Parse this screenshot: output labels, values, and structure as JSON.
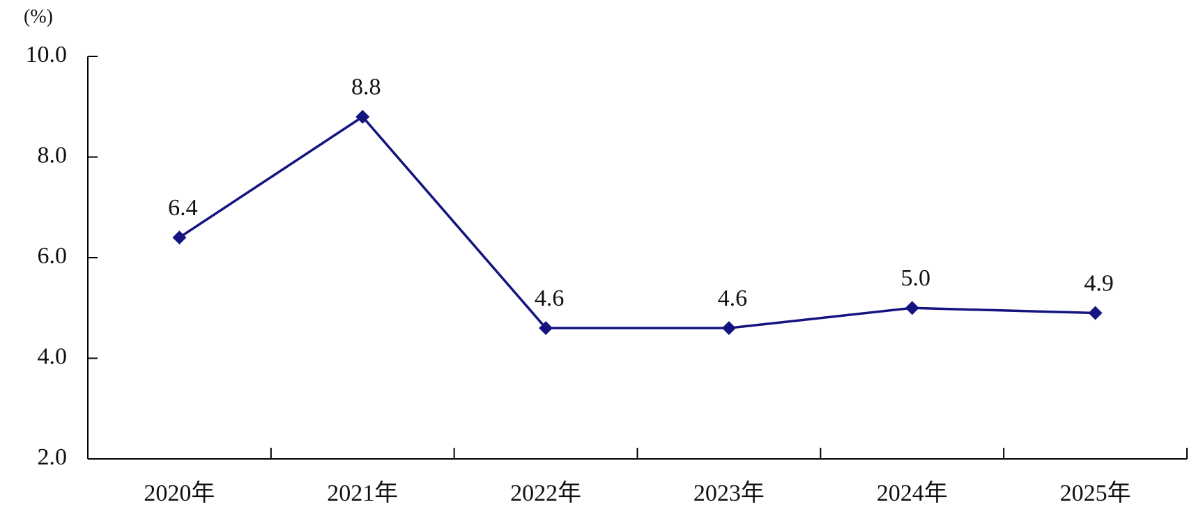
{
  "chart_data": {
    "type": "line",
    "y_label": "(%)",
    "categories": [
      "2020年",
      "2021年",
      "2022年",
      "2023年",
      "2024年",
      "2025年"
    ],
    "series": [
      {
        "color": "#141480",
        "values": [
          6.4,
          8.8,
          4.6,
          4.6,
          5.0,
          4.9
        ],
        "value_labels": [
          "6.4",
          "8.8",
          "4.6",
          "4.6",
          "5.0",
          "4.9"
        ]
      }
    ],
    "ylim": [
      2,
      10
    ],
    "yticks": [
      {
        "value": 2,
        "label": "2.0"
      },
      {
        "value": 4,
        "label": "4.0"
      },
      {
        "value": 6,
        "label": "6.0"
      },
      {
        "value": 8,
        "label": "8.0"
      },
      {
        "value": 10,
        "label": "10.0"
      }
    ]
  }
}
